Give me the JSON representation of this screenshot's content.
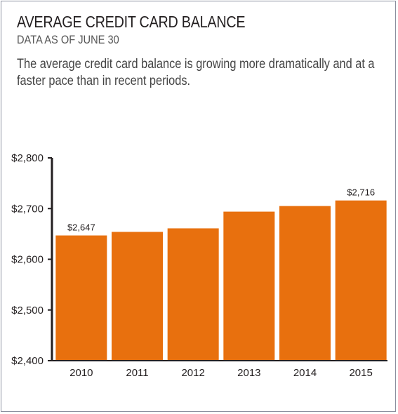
{
  "header": {
    "title": "AVERAGE CREDIT CARD BALANCE",
    "subtitle": "DATA AS OF JUNE 30",
    "description": "The average credit card balance is growing more dramatically and at a faster pace than in recent periods."
  },
  "chart_data": {
    "type": "bar",
    "title": "AVERAGE CREDIT CARD BALANCE",
    "subtitle": "DATA AS OF JUNE 30",
    "categories": [
      "2010",
      "2011",
      "2012",
      "2013",
      "2014",
      "2015"
    ],
    "values": [
      2647,
      2654,
      2661,
      2694,
      2705,
      2716
    ],
    "data_labels": {
      "2010": "$2,647",
      "2015": "$2,716"
    },
    "ylim": [
      2400,
      2800
    ],
    "yticks": [
      2400,
      2500,
      2600,
      2700,
      2800
    ],
    "ytick_labels": [
      "$2,400",
      "$2,500",
      "$2,600",
      "$2,700",
      "$2,800"
    ],
    "xlabel": "",
    "ylabel": "",
    "grid": false,
    "bar_color": "#e8700e",
    "axis_color": "#231f20"
  }
}
